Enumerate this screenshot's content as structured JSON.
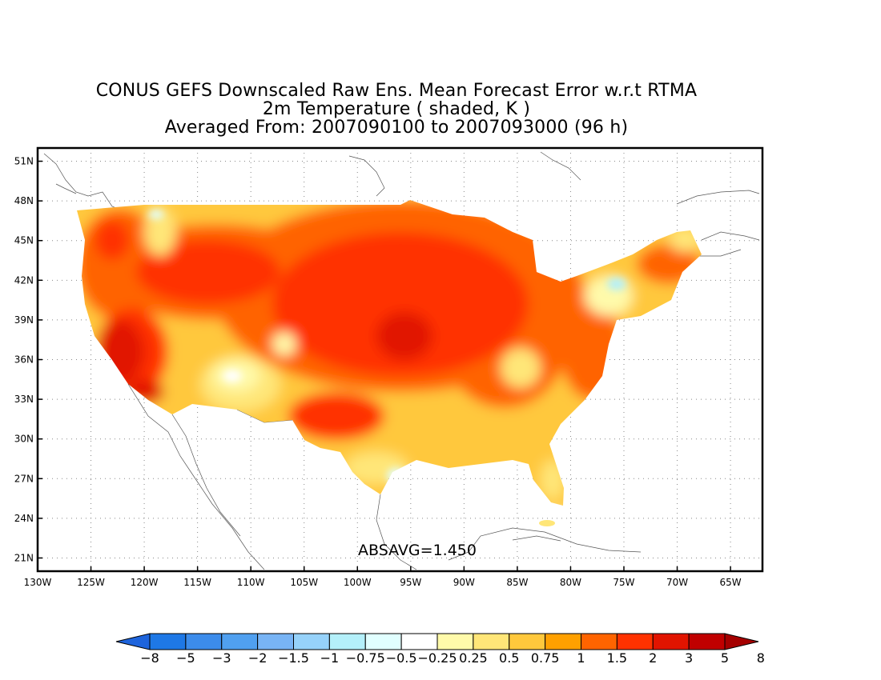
{
  "title": {
    "line1": "CONUS GEFS Downscaled Raw Ens. Mean Forecast Error w.r.t RTMA",
    "line2": "2m Temperature ( shaded, K )",
    "line3": "Averaged From: 2007090100 to 2007093000 (96 h)"
  },
  "stat": {
    "label": "ABSAVG=1.450"
  },
  "map": {
    "lon_range": [
      -130,
      -62
    ],
    "lat_range": [
      20,
      52
    ],
    "lon_ticks": [
      {
        "value": -130,
        "label": "130W"
      },
      {
        "value": -125,
        "label": "125W"
      },
      {
        "value": -120,
        "label": "120W"
      },
      {
        "value": -115,
        "label": "115W"
      },
      {
        "value": -110,
        "label": "110W"
      },
      {
        "value": -105,
        "label": "105W"
      },
      {
        "value": -100,
        "label": "100W"
      },
      {
        "value": -95,
        "label": "95W"
      },
      {
        "value": -90,
        "label": "90W"
      },
      {
        "value": -85,
        "label": "85W"
      },
      {
        "value": -80,
        "label": "80W"
      },
      {
        "value": -75,
        "label": "75W"
      },
      {
        "value": -70,
        "label": "70W"
      },
      {
        "value": -65,
        "label": "65W"
      }
    ],
    "lat_ticks": [
      {
        "value": 21,
        "label": "21N"
      },
      {
        "value": 24,
        "label": "24N"
      },
      {
        "value": 27,
        "label": "27N"
      },
      {
        "value": 30,
        "label": "30N"
      },
      {
        "value": 33,
        "label": "33N"
      },
      {
        "value": 36,
        "label": "36N"
      },
      {
        "value": 39,
        "label": "39N"
      },
      {
        "value": 42,
        "label": "42N"
      },
      {
        "value": 45,
        "label": "45N"
      },
      {
        "value": 48,
        "label": "48N"
      },
      {
        "value": 51,
        "label": "51N"
      }
    ],
    "grid": true
  },
  "colorbar": {
    "labels": [
      "-8",
      "-5",
      "-3",
      "-2",
      "-1.5",
      "-1",
      "-0.75",
      "-0.5",
      "-0.25",
      "0.25",
      "0.5",
      "0.75",
      "1",
      "1.5",
      "2",
      "3",
      "5",
      "8"
    ],
    "colors": [
      "#1e64dc",
      "#1e78e6",
      "#3c8ceb",
      "#50a0f0",
      "#78b4f5",
      "#96d2fa",
      "#b4f0fa",
      "#e1ffff",
      "#ffffff",
      "#fffaaa",
      "#ffe678",
      "#ffc83c",
      "#ffa000",
      "#ff6400",
      "#ff3200",
      "#e11400",
      "#c00000",
      "#a50000"
    ]
  },
  "colors": {
    "high_error": "#e11400",
    "moderate_error": "#ff6400",
    "low_error": "#ffc83c",
    "negative_error": "#b4f0fa"
  }
}
